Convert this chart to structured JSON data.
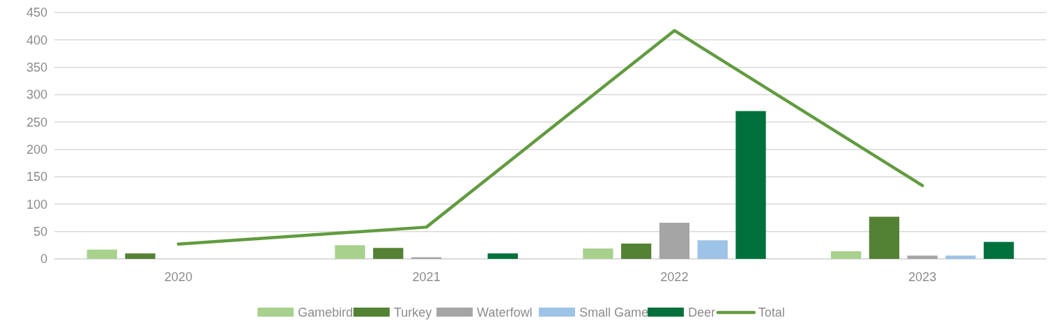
{
  "chart_data": {
    "type": "bar",
    "categories": [
      "2020",
      "2021",
      "2022",
      "2023"
    ],
    "series": [
      {
        "name": "Gamebird",
        "color": "#a9d18e",
        "values": [
          17,
          25,
          19,
          14
        ]
      },
      {
        "name": "Turkey",
        "color": "#548235",
        "values": [
          10,
          20,
          28,
          77
        ]
      },
      {
        "name": "Waterfowl",
        "color": "#a5a5a5",
        "values": [
          null,
          3,
          66,
          6
        ]
      },
      {
        "name": "Small Game",
        "color": "#9dc3e6",
        "values": [
          null,
          0,
          34,
          6
        ]
      },
      {
        "name": "Deer",
        "color": "#00703c",
        "values": [
          null,
          10,
          270,
          31
        ]
      },
      {
        "name": "Total",
        "type": "line",
        "color": "#629b3f",
        "values": [
          27,
          58,
          417,
          134
        ]
      }
    ],
    "ylim": [
      0,
      450
    ],
    "yticks": [
      0,
      50,
      100,
      150,
      200,
      250,
      300,
      350,
      400,
      450
    ],
    "grid": "y",
    "legend": "bottom",
    "marker": "none"
  }
}
